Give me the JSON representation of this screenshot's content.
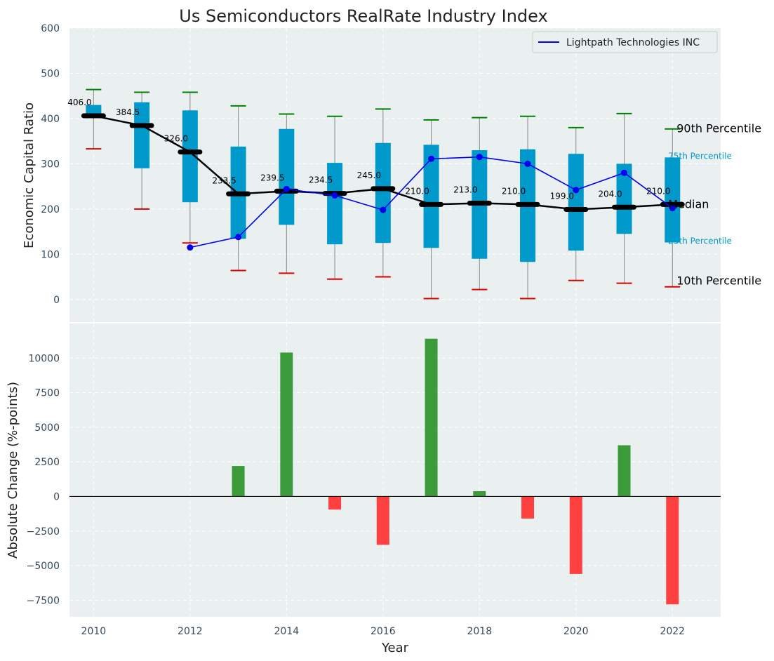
{
  "chart_data": {
    "title": "Us Semiconductors RealRate Industry Index",
    "top_panel": {
      "type": "box",
      "ylabel": "Economic Capital Ratio",
      "ylim": [
        -50,
        600
      ],
      "yticks": [
        0,
        100,
        200,
        300,
        400,
        500,
        600
      ],
      "years": [
        2010,
        2011,
        2012,
        2013,
        2014,
        2015,
        2016,
        2017,
        2018,
        2019,
        2020,
        2021,
        2022
      ],
      "p10": [
        333,
        200,
        125,
        64,
        58,
        45,
        50,
        2,
        22,
        2,
        42,
        36,
        28
      ],
      "q1": [
        405,
        290,
        215,
        134,
        165,
        122,
        125,
        114,
        90,
        83,
        108,
        145,
        126
      ],
      "median": [
        406.0,
        384.5,
        326.0,
        233.5,
        239.5,
        234.5,
        245.0,
        210.0,
        213.0,
        210.0,
        199.0,
        204.0,
        210.0
      ],
      "median_labels": [
        "406.0",
        "384.5",
        "326.0",
        "233.5",
        "239.5",
        "234.5",
        "245.0",
        "210.0",
        "213.0",
        "210.0",
        "199.0",
        "204.0",
        "210.0"
      ],
      "q3": [
        430,
        436,
        418,
        338,
        377,
        302,
        346,
        342,
        330,
        332,
        322,
        300,
        314
      ],
      "p90": [
        464,
        458,
        458,
        428,
        410,
        405,
        421,
        397,
        402,
        405,
        380,
        411,
        377
      ],
      "company_series": {
        "name": "Lightpath Technologies INC",
        "years": [
          2012,
          2013,
          2014,
          2015,
          2016,
          2017,
          2018,
          2019,
          2020,
          2021,
          2022
        ],
        "values": [
          115,
          138,
          244,
          230,
          198,
          311,
          315,
          300,
          242,
          280,
          202
        ]
      },
      "annotations": {
        "p90": "90th Percentile",
        "p75": "75th Percentile",
        "median": "Median",
        "p25": "25th Percentile",
        "p10": "10th Percentile"
      },
      "legend_position": "top-right"
    },
    "bottom_panel": {
      "type": "bar",
      "ylabel": "Absolute Change (%-points)",
      "xlabel": "Year",
      "ylim": [
        -8700,
        12500
      ],
      "yticks": [
        -7500,
        -5000,
        -2500,
        0,
        2500,
        5000,
        7500,
        10000
      ],
      "ytick_labels": [
        "−7500",
        "−5000",
        "−2500",
        "0",
        "2500",
        "5000",
        "7500",
        "10000"
      ],
      "years": [
        2013,
        2014,
        2015,
        2016,
        2017,
        2018,
        2019,
        2020,
        2021,
        2022
      ],
      "values": [
        2200,
        10400,
        -950,
        -3500,
        11400,
        380,
        -1600,
        -5600,
        3700,
        -7800
      ],
      "xticks": [
        2010,
        2012,
        2014,
        2016,
        2018,
        2020,
        2022
      ],
      "xlim": [
        2009.5,
        2023
      ]
    },
    "colors": {
      "box": "#0099cc",
      "median": "#000000",
      "company": "#0000ee",
      "p90_cap": "#008000",
      "p10_cap": "#dd0000",
      "whisker": "#888888",
      "pos_bar": "#3b9b3b",
      "neg_bar": "#ff4040",
      "plot_bg": "#eaeff0",
      "grid": "#ffffff",
      "tick_text": "#34495e"
    }
  }
}
